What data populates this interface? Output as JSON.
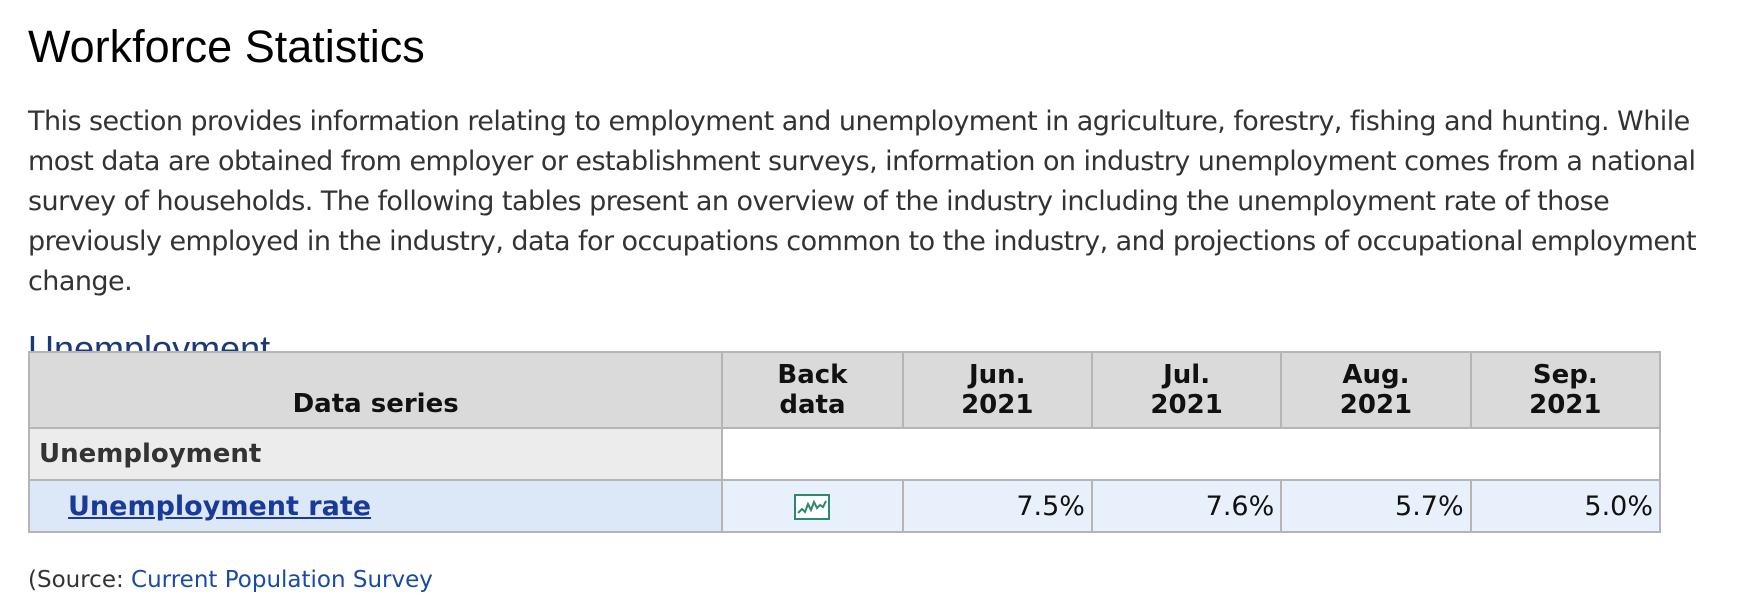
{
  "page_title": "Workforce Statistics",
  "intro": "This section provides information relating to employment and unemployment in agriculture, forestry, fishing and hunting. While most data are obtained from employer or establishment surveys, information on industry unemployment comes from a national survey of households. The following tables present an overview of the industry including the unemployment rate of those previously employed in the industry, data for occupations common to the industry, and projections of occupational employment change.",
  "section_heading": "Unemployment",
  "table": {
    "headers": {
      "series": "Data series",
      "back_line1": "Back",
      "back_line2": "data",
      "months": [
        {
          "line1": "Jun.",
          "line2": "2021"
        },
        {
          "line1": "Jul.",
          "line2": "2021"
        },
        {
          "line1": "Aug.",
          "line2": "2021"
        },
        {
          "line1": "Sep.",
          "line2": "2021"
        }
      ]
    },
    "group_label": "Unemployment",
    "rows": [
      {
        "name": "Unemployment rate",
        "back_data_icon": "line-chart-icon",
        "values": [
          "7.5%",
          "7.6%",
          "5.7%",
          "5.0%"
        ]
      }
    ]
  },
  "source": {
    "prefix": "(Source: ",
    "link": "Current Population Survey"
  },
  "colors": {
    "heading": "#1a3a7a",
    "link": "#1a3a9a",
    "header_bg": "#dadada",
    "series_bg": "#dce8f8",
    "icon": "#2a8a6a"
  }
}
